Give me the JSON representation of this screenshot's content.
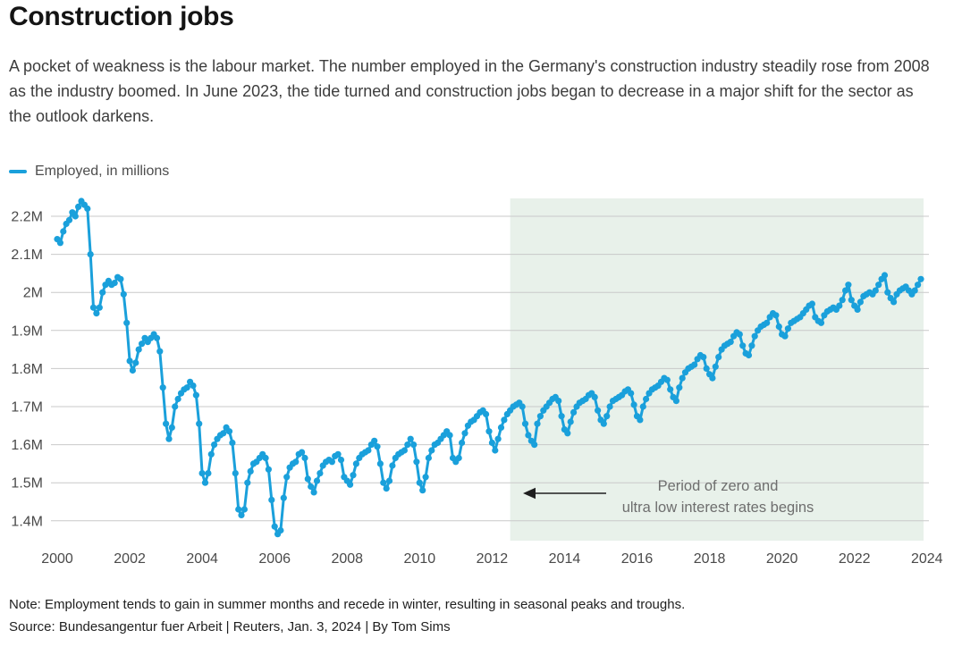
{
  "header": {
    "title": "Construction jobs",
    "subtitle": "A pocket of weakness is the labour market. The number employed in the Germany's construction industry steadily rose from 2008 as the industry boomed. In June 2023, the tide turned and construction jobs began to decrease in a major shift for the sector as the outlook darkens."
  },
  "legend": {
    "label": "Employed, in millions"
  },
  "chart_data": {
    "type": "line",
    "title": "Employed, in millions",
    "x_start": "2000-01",
    "frequency": "monthly",
    "x_ticks": [
      "2000",
      "2002",
      "2004",
      "2006",
      "2008",
      "2010",
      "2012",
      "2014",
      "2016",
      "2018",
      "2020",
      "2022",
      "2024"
    ],
    "y_ticks": [
      {
        "value": 2.2,
        "label": "2.2M"
      },
      {
        "value": 2.1,
        "label": "2.1M"
      },
      {
        "value": 2.0,
        "label": "2M"
      },
      {
        "value": 1.9,
        "label": "1.9M"
      },
      {
        "value": 1.8,
        "label": "1.8M"
      },
      {
        "value": 1.7,
        "label": "1.7M"
      },
      {
        "value": 1.6,
        "label": "1.6M"
      },
      {
        "value": 1.5,
        "label": "1.5M"
      },
      {
        "value": 1.4,
        "label": "1.4M"
      }
    ],
    "ylim": [
      1.33,
      2.28
    ],
    "grid": "horizontal",
    "colors": {
      "line": "#1aa0db",
      "band": "#e8f1ea",
      "grid": "#c9c9c9",
      "tick": "#4a4a4a",
      "annotation": "#6e6e6e",
      "arrow": "#1f1f1f"
    },
    "highlight_band": {
      "from": "2012-07",
      "to": "2024-01",
      "annotation_lines": [
        "Period of zero and",
        "ultra low interest rates begins"
      ],
      "arrow_direction": "left"
    },
    "series": [
      {
        "name": "Employed, in millions",
        "values": [
          2.14,
          2.13,
          2.16,
          2.18,
          2.19,
          2.21,
          2.2,
          2.225,
          2.24,
          2.23,
          2.22,
          2.1,
          1.96,
          1.945,
          1.96,
          2.0,
          2.02,
          2.03,
          2.02,
          2.025,
          2.04,
          2.035,
          1.995,
          1.92,
          1.82,
          1.795,
          1.815,
          1.85,
          1.865,
          1.88,
          1.87,
          1.88,
          1.89,
          1.88,
          1.845,
          1.75,
          1.655,
          1.615,
          1.645,
          1.7,
          1.72,
          1.735,
          1.745,
          1.75,
          1.765,
          1.755,
          1.73,
          1.655,
          1.525,
          1.5,
          1.525,
          1.575,
          1.6,
          1.615,
          1.625,
          1.63,
          1.645,
          1.635,
          1.605,
          1.525,
          1.43,
          1.415,
          1.43,
          1.5,
          1.53,
          1.55,
          1.555,
          1.565,
          1.575,
          1.565,
          1.535,
          1.455,
          1.385,
          1.365,
          1.375,
          1.46,
          1.515,
          1.54,
          1.55,
          1.555,
          1.575,
          1.58,
          1.565,
          1.51,
          1.49,
          1.475,
          1.505,
          1.525,
          1.545,
          1.555,
          1.56,
          1.555,
          1.57,
          1.575,
          1.56,
          1.515,
          1.505,
          1.495,
          1.52,
          1.55,
          1.565,
          1.575,
          1.58,
          1.585,
          1.6,
          1.61,
          1.595,
          1.55,
          1.5,
          1.485,
          1.505,
          1.545,
          1.565,
          1.575,
          1.58,
          1.585,
          1.6,
          1.615,
          1.6,
          1.555,
          1.5,
          1.48,
          1.515,
          1.565,
          1.585,
          1.6,
          1.605,
          1.615,
          1.625,
          1.635,
          1.625,
          1.565,
          1.555,
          1.565,
          1.605,
          1.63,
          1.65,
          1.66,
          1.665,
          1.675,
          1.685,
          1.69,
          1.68,
          1.635,
          1.605,
          1.585,
          1.615,
          1.645,
          1.665,
          1.68,
          1.69,
          1.7,
          1.705,
          1.71,
          1.7,
          1.655,
          1.625,
          1.61,
          1.6,
          1.655,
          1.675,
          1.69,
          1.7,
          1.71,
          1.72,
          1.725,
          1.715,
          1.675,
          1.64,
          1.63,
          1.66,
          1.685,
          1.7,
          1.71,
          1.715,
          1.72,
          1.73,
          1.735,
          1.725,
          1.69,
          1.665,
          1.655,
          1.675,
          1.7,
          1.715,
          1.72,
          1.725,
          1.73,
          1.74,
          1.745,
          1.735,
          1.705,
          1.675,
          1.665,
          1.7,
          1.72,
          1.735,
          1.745,
          1.75,
          1.755,
          1.765,
          1.775,
          1.77,
          1.745,
          1.725,
          1.715,
          1.75,
          1.775,
          1.79,
          1.8,
          1.805,
          1.81,
          1.825,
          1.835,
          1.83,
          1.8,
          1.785,
          1.775,
          1.805,
          1.83,
          1.85,
          1.86,
          1.865,
          1.87,
          1.885,
          1.895,
          1.89,
          1.86,
          1.84,
          1.835,
          1.86,
          1.885,
          1.9,
          1.91,
          1.915,
          1.92,
          1.935,
          1.945,
          1.94,
          1.91,
          1.89,
          1.885,
          1.905,
          1.92,
          1.925,
          1.93,
          1.935,
          1.945,
          1.955,
          1.965,
          1.97,
          1.935,
          1.925,
          1.92,
          1.94,
          1.95,
          1.955,
          1.96,
          1.955,
          1.965,
          1.98,
          2.005,
          2.02,
          1.98,
          1.965,
          1.955,
          1.975,
          1.99,
          1.995,
          2.0,
          1.995,
          2.005,
          2.02,
          2.035,
          2.045,
          2.0,
          1.985,
          1.975,
          1.995,
          2.005,
          2.01,
          2.015,
          2.005,
          1.995,
          2.005,
          2.02,
          2.035
        ]
      }
    ]
  },
  "footer": {
    "note": "Note: Employment tends to gain in summer months and recede in winter, resulting in seasonal peaks and troughs.",
    "source": "Source: Bundesangentur fuer Arbeit | Reuters, Jan. 3, 2024 | By Tom Sims"
  }
}
